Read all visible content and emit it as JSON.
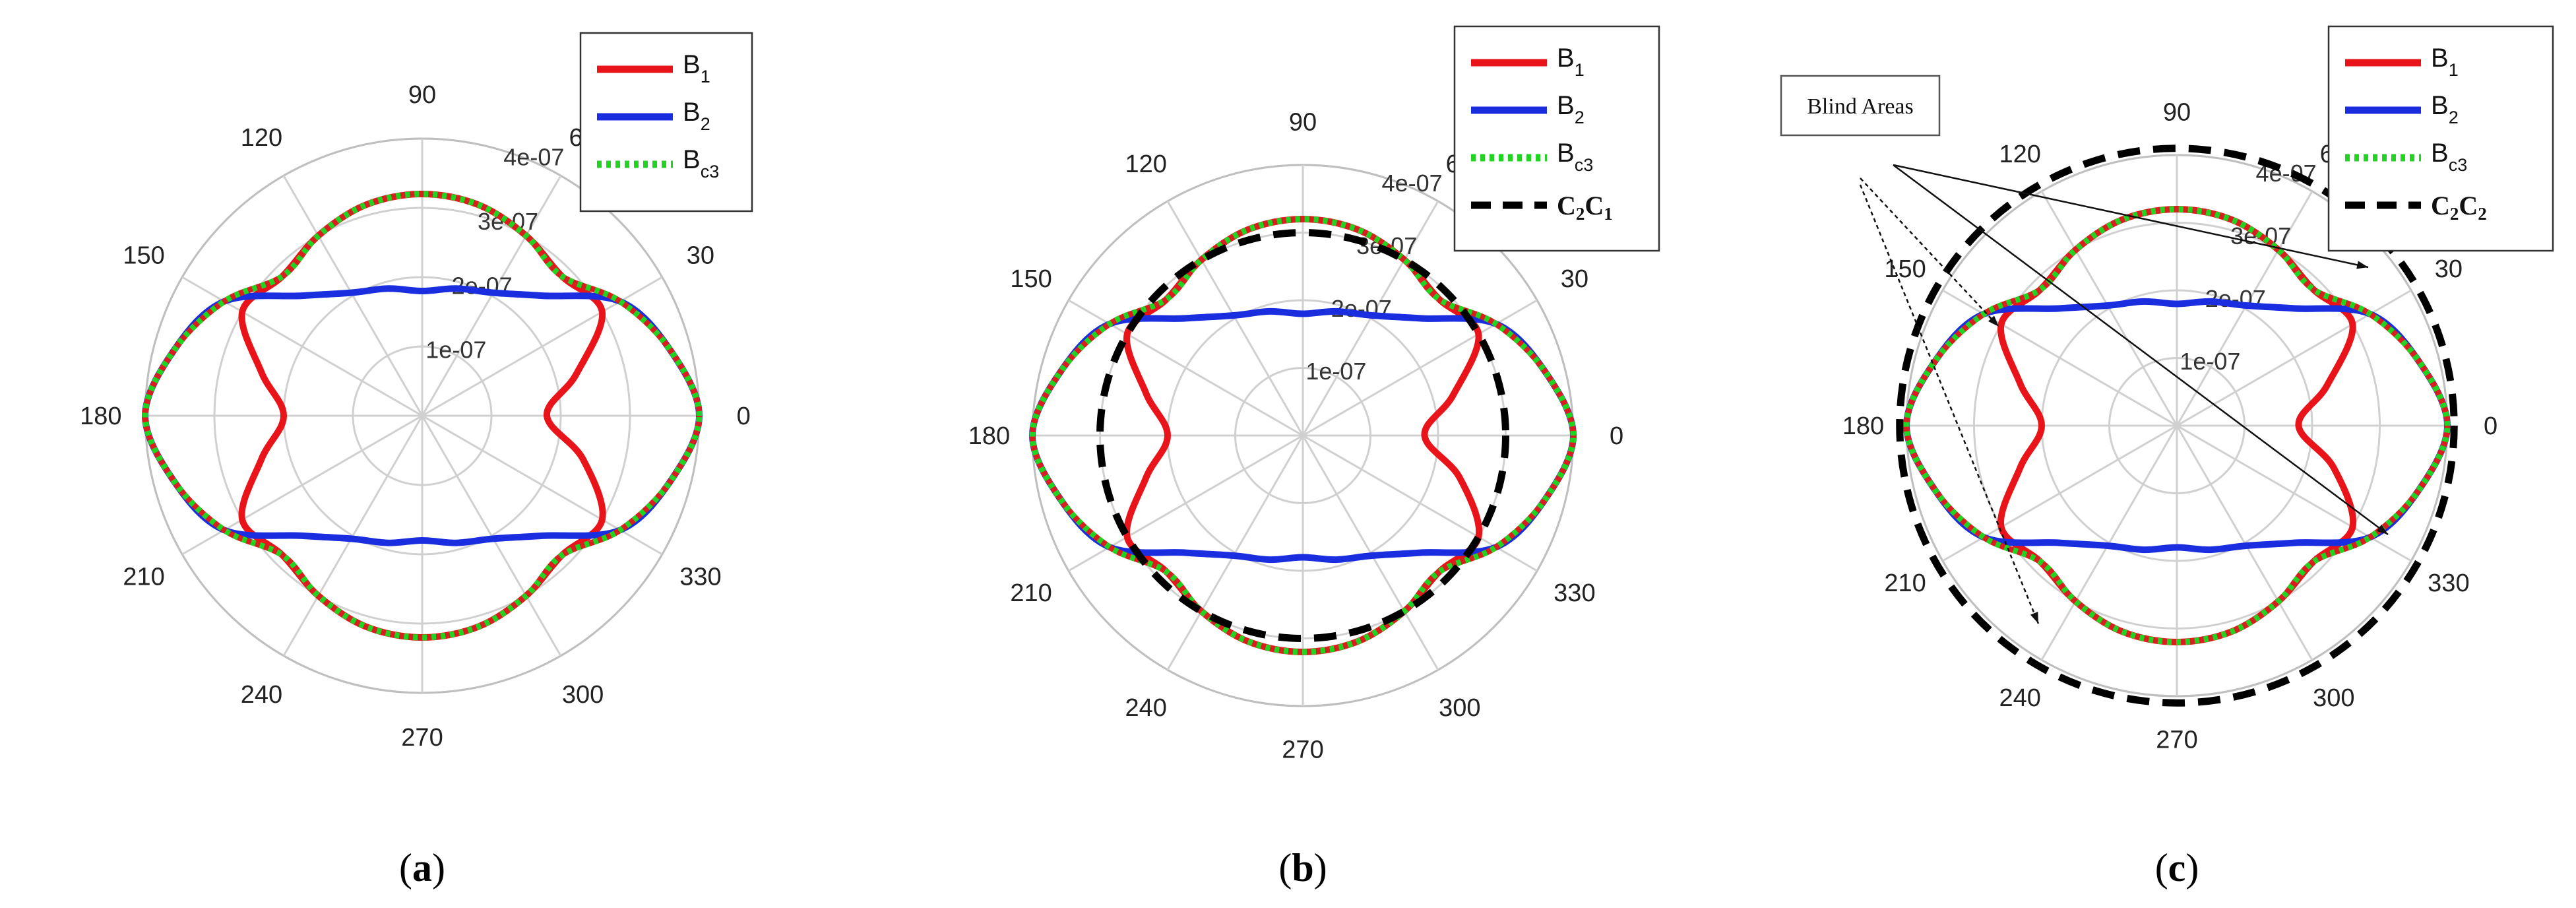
{
  "chart_data": [
    {
      "type": "polar-line",
      "panel_label": "a",
      "theta_ticks": [
        "0",
        "30",
        "60",
        "90",
        "120",
        "150",
        "180",
        "210",
        "240",
        "270",
        "300",
        "330"
      ],
      "r_ticks": [
        "1e-07",
        "2e-07",
        "3e-07",
        "4e-07"
      ],
      "rlim": [
        0,
        4e-07
      ],
      "legend": {
        "placement": "top-right"
      },
      "series": [
        {
          "name": "B",
          "sub": "1",
          "color": "#e8141a",
          "style": "solid",
          "theta": [
            0,
            15,
            30,
            45,
            60,
            75,
            90,
            105,
            120,
            135,
            150,
            165,
            180,
            195,
            210,
            225,
            240,
            255,
            270,
            285,
            300,
            315,
            330,
            345,
            360
          ],
          "r": [
            1.8e-07,
            2.3e-07,
            3e-07,
            2.85e-07,
            3e-07,
            3.15e-07,
            3.2e-07,
            3.15e-07,
            3e-07,
            2.85e-07,
            3e-07,
            2.4e-07,
            2e-07,
            2.4e-07,
            3e-07,
            2.85e-07,
            3e-07,
            3.15e-07,
            3.2e-07,
            3.15e-07,
            3e-07,
            2.85e-07,
            3e-07,
            2.4e-07,
            1.8e-07
          ]
        },
        {
          "name": "B",
          "sub": "2",
          "color": "#1a2ee0",
          "style": "solid",
          "theta": [
            0,
            15,
            30,
            45,
            60,
            75,
            90,
            105,
            120,
            135,
            150,
            165,
            180,
            195,
            210,
            225,
            240,
            255,
            270,
            285,
            300,
            315,
            330,
            345,
            360
          ],
          "r": [
            4e-07,
            3.7e-07,
            3.3e-07,
            2.45e-07,
            2.05e-07,
            1.9e-07,
            1.8e-07,
            1.9e-07,
            2.05e-07,
            2.45e-07,
            3.3e-07,
            3.7e-07,
            4e-07,
            3.7e-07,
            3.3e-07,
            2.45e-07,
            2.05e-07,
            1.9e-07,
            1.8e-07,
            1.9e-07,
            2.05e-07,
            2.45e-07,
            3.3e-07,
            3.7e-07,
            4e-07
          ]
        },
        {
          "name": "B",
          "sub": "c3",
          "color": "#22d422",
          "style": "dotted",
          "theta": [
            0,
            15,
            30,
            45,
            60,
            75,
            90,
            105,
            120,
            135,
            150,
            165,
            180,
            195,
            210,
            225,
            240,
            255,
            270,
            285,
            300,
            315,
            330,
            345,
            360
          ],
          "r": [
            4e-07,
            3.7e-07,
            3.3e-07,
            2.85e-07,
            3e-07,
            3.15e-07,
            3.2e-07,
            3.15e-07,
            3e-07,
            2.85e-07,
            3.3e-07,
            3.7e-07,
            4e-07,
            3.7e-07,
            3.3e-07,
            2.85e-07,
            3e-07,
            3.15e-07,
            3.2e-07,
            3.15e-07,
            3e-07,
            2.85e-07,
            3.3e-07,
            3.7e-07,
            4e-07
          ]
        }
      ]
    },
    {
      "type": "polar-line",
      "panel_label": "b",
      "theta_ticks": [
        "0",
        "30",
        "60",
        "90",
        "120",
        "150",
        "180",
        "210",
        "240",
        "270",
        "300",
        "330"
      ],
      "r_ticks": [
        "1e-07",
        "2e-07",
        "3e-07",
        "4e-07"
      ],
      "rlim": [
        0,
        4e-07
      ],
      "legend": {
        "placement": "top-right"
      },
      "series": [
        {
          "name": "B",
          "sub": "1",
          "color": "#e8141a",
          "style": "solid",
          "theta": [
            0,
            15,
            30,
            45,
            60,
            75,
            90,
            105,
            120,
            135,
            150,
            165,
            180,
            195,
            210,
            225,
            240,
            255,
            270,
            285,
            300,
            315,
            330,
            345,
            360
          ],
          "r": [
            1.8e-07,
            2.3e-07,
            3e-07,
            2.85e-07,
            3e-07,
            3.15e-07,
            3.2e-07,
            3.15e-07,
            3e-07,
            2.85e-07,
            3e-07,
            2.4e-07,
            2e-07,
            2.4e-07,
            3e-07,
            2.85e-07,
            3e-07,
            3.15e-07,
            3.2e-07,
            3.15e-07,
            3e-07,
            2.85e-07,
            3e-07,
            2.4e-07,
            1.8e-07
          ]
        },
        {
          "name": "B",
          "sub": "2",
          "color": "#1a2ee0",
          "style": "solid",
          "theta": [
            0,
            15,
            30,
            45,
            60,
            75,
            90,
            105,
            120,
            135,
            150,
            165,
            180,
            195,
            210,
            225,
            240,
            255,
            270,
            285,
            300,
            315,
            330,
            345,
            360
          ],
          "r": [
            4e-07,
            3.7e-07,
            3.3e-07,
            2.45e-07,
            2.05e-07,
            1.9e-07,
            1.8e-07,
            1.9e-07,
            2.05e-07,
            2.45e-07,
            3.3e-07,
            3.7e-07,
            4e-07,
            3.7e-07,
            3.3e-07,
            2.45e-07,
            2.05e-07,
            1.9e-07,
            1.8e-07,
            1.9e-07,
            2.05e-07,
            2.45e-07,
            3.3e-07,
            3.7e-07,
            4e-07
          ]
        },
        {
          "name": "B",
          "sub": "c3",
          "color": "#22d422",
          "style": "dotted",
          "theta": [
            0,
            15,
            30,
            45,
            60,
            75,
            90,
            105,
            120,
            135,
            150,
            165,
            180,
            195,
            210,
            225,
            240,
            255,
            270,
            285,
            300,
            315,
            330,
            345,
            360
          ],
          "r": [
            4e-07,
            3.7e-07,
            3.3e-07,
            2.85e-07,
            3e-07,
            3.15e-07,
            3.2e-07,
            3.15e-07,
            3e-07,
            2.85e-07,
            3.3e-07,
            3.7e-07,
            4e-07,
            3.7e-07,
            3.3e-07,
            2.85e-07,
            3e-07,
            3.15e-07,
            3.2e-07,
            3.15e-07,
            3e-07,
            2.85e-07,
            3.3e-07,
            3.7e-07,
            4e-07
          ]
        },
        {
          "name": "C",
          "sub": "",
          "name2": "C",
          "sub2": "",
          "legend_text": "C2C1",
          "color": "#000000",
          "style": "dashed",
          "circle": true,
          "r": [
            3e-07
          ],
          "center_offset": [
            0,
            0
          ]
        }
      ]
    },
    {
      "type": "polar-line",
      "panel_label": "c",
      "theta_ticks": [
        "0",
        "30",
        "60",
        "90",
        "120",
        "150",
        "180",
        "210",
        "240",
        "270",
        "300",
        "330"
      ],
      "r_ticks": [
        "1e-07",
        "2e-07",
        "3e-07",
        "4e-07"
      ],
      "rlim": [
        0,
        4e-07
      ],
      "legend": {
        "placement": "top-right"
      },
      "annotation": "Blind Areas",
      "series": [
        {
          "name": "B",
          "sub": "1",
          "color": "#e8141a",
          "style": "solid",
          "theta": [
            0,
            15,
            30,
            45,
            60,
            75,
            90,
            105,
            120,
            135,
            150,
            165,
            180,
            195,
            210,
            225,
            240,
            255,
            270,
            285,
            300,
            315,
            330,
            345,
            360
          ],
          "r": [
            1.8e-07,
            2.3e-07,
            3e-07,
            2.85e-07,
            3e-07,
            3.15e-07,
            3.2e-07,
            3.15e-07,
            3e-07,
            2.85e-07,
            3e-07,
            2.4e-07,
            2e-07,
            2.4e-07,
            3e-07,
            2.85e-07,
            3e-07,
            3.15e-07,
            3.2e-07,
            3.15e-07,
            3e-07,
            2.85e-07,
            3e-07,
            2.4e-07,
            1.8e-07
          ]
        },
        {
          "name": "B",
          "sub": "2",
          "color": "#1a2ee0",
          "style": "solid",
          "theta": [
            0,
            15,
            30,
            45,
            60,
            75,
            90,
            105,
            120,
            135,
            150,
            165,
            180,
            195,
            210,
            225,
            240,
            255,
            270,
            285,
            300,
            315,
            330,
            345,
            360
          ],
          "r": [
            4e-07,
            3.7e-07,
            3.3e-07,
            2.45e-07,
            2.05e-07,
            1.9e-07,
            1.8e-07,
            1.9e-07,
            2.05e-07,
            2.45e-07,
            3.3e-07,
            3.7e-07,
            4e-07,
            3.7e-07,
            3.3e-07,
            2.45e-07,
            2.05e-07,
            1.9e-07,
            1.8e-07,
            1.9e-07,
            2.05e-07,
            2.45e-07,
            3.3e-07,
            3.7e-07,
            4e-07
          ]
        },
        {
          "name": "B",
          "sub": "c3",
          "color": "#22d422",
          "style": "dotted",
          "theta": [
            0,
            15,
            30,
            45,
            60,
            75,
            90,
            105,
            120,
            135,
            150,
            165,
            180,
            195,
            210,
            225,
            240,
            255,
            270,
            285,
            300,
            315,
            330,
            345,
            360
          ],
          "r": [
            4e-07,
            3.7e-07,
            3.3e-07,
            2.85e-07,
            3e-07,
            3.15e-07,
            3.2e-07,
            3.15e-07,
            3e-07,
            2.85e-07,
            3.3e-07,
            3.7e-07,
            4e-07,
            3.7e-07,
            3.3e-07,
            2.85e-07,
            3e-07,
            3.15e-07,
            3.2e-07,
            3.15e-07,
            3e-07,
            2.85e-07,
            3.3e-07,
            3.7e-07,
            4e-07
          ]
        },
        {
          "name": "C",
          "sub": "",
          "legend_text": "C2C2",
          "color": "#000000",
          "style": "dashed",
          "circle": true,
          "r": [
            4.1e-07
          ]
        }
      ]
    }
  ]
}
